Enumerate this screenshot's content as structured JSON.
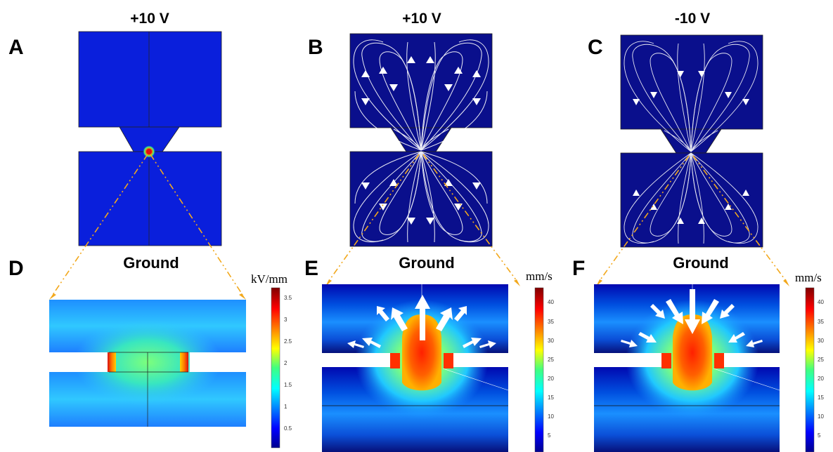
{
  "figure": {
    "columns": [
      {
        "letter": "A",
        "voltage": "+10 V"
      },
      {
        "letter": "B",
        "voltage": "+10 V"
      },
      {
        "letter": "C",
        "voltage": "-10 V"
      }
    ],
    "bottom_panels": [
      {
        "letter": "D",
        "ground": "Ground",
        "unit": "kV/mm",
        "ticks": [
          "3.5",
          "3",
          "2.5",
          "2",
          "1.5",
          "1",
          "0.5"
        ]
      },
      {
        "letter": "E",
        "ground": "Ground",
        "unit": "mm/s",
        "ticks": [
          "40",
          "35",
          "30",
          "25",
          "20",
          "15",
          "10",
          "5"
        ]
      },
      {
        "letter": "F",
        "ground": "Ground",
        "unit": "mm/s",
        "ticks": [
          "40",
          "35",
          "30",
          "25",
          "20",
          "15",
          "10",
          "5"
        ]
      }
    ],
    "colors": {
      "domain_blue": "#0a1fdc",
      "dark_blue": "#0a0f8c",
      "streamline": "#ffffff",
      "zoom_guide": "#f2a81c",
      "hot": "#e01010"
    },
    "colormap": "jet"
  }
}
